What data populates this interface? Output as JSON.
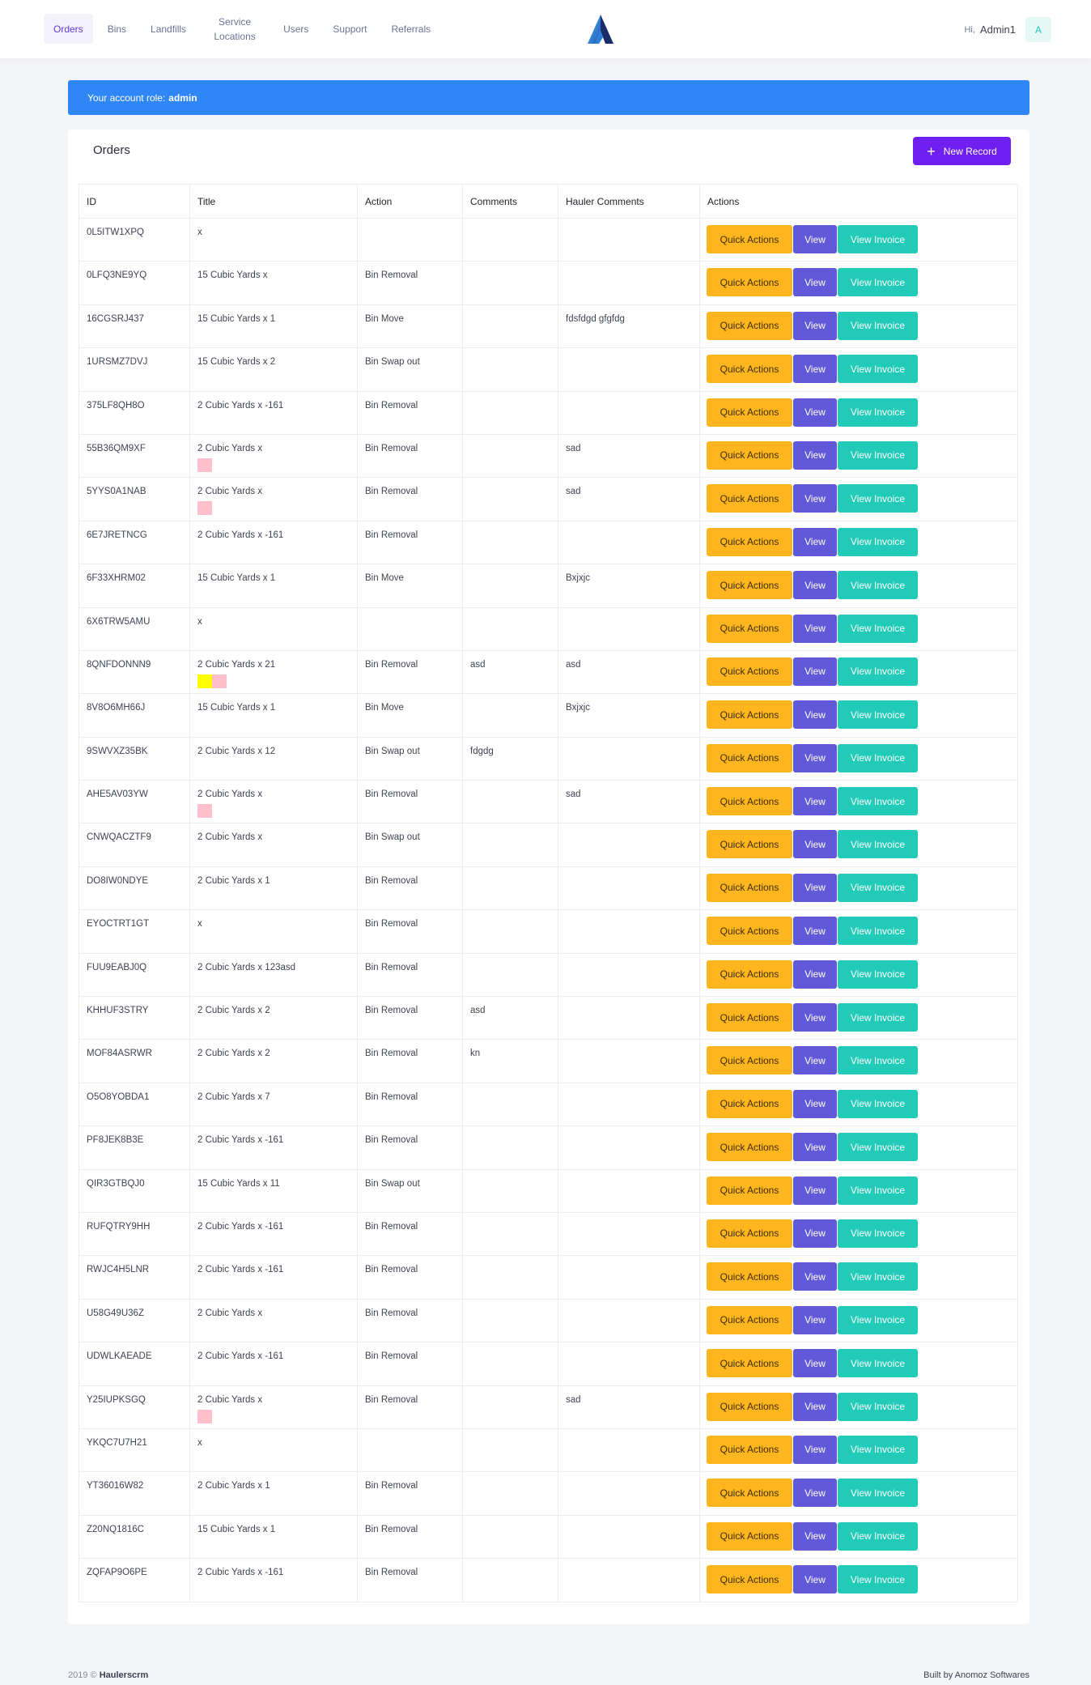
{
  "nav": {
    "items": [
      {
        "label": "Orders",
        "active": true
      },
      {
        "label": "Bins"
      },
      {
        "label": "Landfills"
      },
      {
        "label": "Service Locations"
      },
      {
        "label": "Users"
      },
      {
        "label": "Support"
      },
      {
        "label": "Referrals"
      }
    ]
  },
  "user": {
    "greeting": "Hi,",
    "name": "Admin1",
    "initial": "A"
  },
  "alert": {
    "prefix": "Your account role:",
    "role": "admin"
  },
  "card": {
    "title": "Orders",
    "new_button": "New Record"
  },
  "table": {
    "headers": [
      "ID",
      "Title",
      "Action",
      "Comments",
      "Hauler Comments",
      "Actions"
    ],
    "buttons": {
      "quick": "Quick Actions",
      "view": "View",
      "invoice": "View Invoice"
    },
    "rows": [
      {
        "id": "0L5ITW1XPQ",
        "title": "x",
        "action": "",
        "comments": "",
        "hauler": ""
      },
      {
        "id": "0LFQ3NE9YQ",
        "title": "15 Cubic Yards x",
        "action": "Bin Removal",
        "comments": "",
        "hauler": ""
      },
      {
        "id": "16CGSRJ437",
        "title": "15 Cubic Yards x 1",
        "action": "Bin Move",
        "comments": "",
        "hauler": "fdsfdgd gfgfdg"
      },
      {
        "id": "1URSMZ7DVJ",
        "title": "15 Cubic Yards x 2",
        "action": "Bin Swap out",
        "comments": "",
        "hauler": ""
      },
      {
        "id": "375LF8QH8O",
        "title": "2 Cubic Yards x -161",
        "action": "Bin Removal",
        "comments": "",
        "hauler": ""
      },
      {
        "id": "55B36QM9XF",
        "title": "2 Cubic Yards x",
        "action": "Bin Removal",
        "comments": "",
        "hauler": "sad",
        "swatches": [
          "#ffc0cb"
        ]
      },
      {
        "id": "5YYS0A1NAB",
        "title": "2 Cubic Yards x",
        "action": "Bin Removal",
        "comments": "",
        "hauler": "sad",
        "swatches": [
          "#ffc0cb"
        ]
      },
      {
        "id": "6E7JRETNCG",
        "title": "2 Cubic Yards x -161",
        "action": "Bin Removal",
        "comments": "",
        "hauler": ""
      },
      {
        "id": "6F33XHRM02",
        "title": "15 Cubic Yards x 1",
        "action": "Bin Move",
        "comments": "",
        "hauler": "Bxjxjc"
      },
      {
        "id": "6X6TRW5AMU",
        "title": "x",
        "action": "",
        "comments": "",
        "hauler": ""
      },
      {
        "id": "8QNFDONNN9",
        "title": "2 Cubic Yards x 21",
        "action": "Bin Removal",
        "comments": "asd",
        "hauler": "asd",
        "swatches": [
          "#ffff00",
          "#ffc0cb"
        ]
      },
      {
        "id": "8V8O6MH66J",
        "title": "15 Cubic Yards x 1",
        "action": "Bin Move",
        "comments": "",
        "hauler": "Bxjxjc"
      },
      {
        "id": "9SWVXZ35BK",
        "title": "2 Cubic Yards x 12",
        "action": "Bin Swap out",
        "comments": "fdgdg",
        "hauler": ""
      },
      {
        "id": "AHE5AV03YW",
        "title": "2 Cubic Yards x",
        "action": "Bin Removal",
        "comments": "",
        "hauler": "sad",
        "swatches": [
          "#ffc0cb"
        ]
      },
      {
        "id": "CNWQACZTF9",
        "title": "2 Cubic Yards x",
        "action": "Bin Swap out",
        "comments": "",
        "hauler": ""
      },
      {
        "id": "DO8IW0NDYE",
        "title": "2 Cubic Yards x 1",
        "action": "Bin Removal",
        "comments": "",
        "hauler": ""
      },
      {
        "id": "EYOCTRT1GT",
        "title": "x",
        "action": "Bin Removal",
        "comments": "",
        "hauler": ""
      },
      {
        "id": "FUU9EABJ0Q",
        "title": "2 Cubic Yards x 123asd",
        "action": "Bin Removal",
        "comments": "",
        "hauler": ""
      },
      {
        "id": "KHHUF3STRY",
        "title": "2 Cubic Yards x 2",
        "action": "Bin Removal",
        "comments": "asd",
        "hauler": ""
      },
      {
        "id": "MOF84ASRWR",
        "title": "2 Cubic Yards x 2",
        "action": "Bin Removal",
        "comments": "kn",
        "hauler": ""
      },
      {
        "id": "O5O8YOBDA1",
        "title": "2 Cubic Yards x 7",
        "action": "Bin Removal",
        "comments": "",
        "hauler": ""
      },
      {
        "id": "PF8JEK8B3E",
        "title": "2 Cubic Yards x -161",
        "action": "Bin Removal",
        "comments": "",
        "hauler": ""
      },
      {
        "id": "QIR3GTBQJ0",
        "title": "15 Cubic Yards x 11",
        "action": "Bin Swap out",
        "comments": "",
        "hauler": ""
      },
      {
        "id": "RUFQTRY9HH",
        "title": "2 Cubic Yards x -161",
        "action": "Bin Removal",
        "comments": "",
        "hauler": ""
      },
      {
        "id": "RWJC4H5LNR",
        "title": "2 Cubic Yards x -161",
        "action": "Bin Removal",
        "comments": "",
        "hauler": ""
      },
      {
        "id": "U58G49U36Z",
        "title": "2 Cubic Yards x",
        "action": "Bin Removal",
        "comments": "",
        "hauler": ""
      },
      {
        "id": "UDWLKAEADE",
        "title": "2 Cubic Yards x -161",
        "action": "Bin Removal",
        "comments": "",
        "hauler": ""
      },
      {
        "id": "Y25IUPKSGQ",
        "title": "2 Cubic Yards x",
        "action": "Bin Removal",
        "comments": "",
        "hauler": "sad",
        "swatches": [
          "#ffc0cb"
        ]
      },
      {
        "id": "YKQC7U7H21",
        "title": "x",
        "action": "",
        "comments": "",
        "hauler": ""
      },
      {
        "id": "YT36016W82",
        "title": "2 Cubic Yards x 1",
        "action": "Bin Removal",
        "comments": "",
        "hauler": ""
      },
      {
        "id": "Z20NQ1816C",
        "title": "15 Cubic Yards x 1",
        "action": "Bin Removal",
        "comments": "",
        "hauler": ""
      },
      {
        "id": "ZQFAP9O6PE",
        "title": "2 Cubic Yards x -161",
        "action": "Bin Removal",
        "comments": "",
        "hauler": ""
      }
    ]
  },
  "footer": {
    "year": "2019 ©",
    "brand": "Haulerscrm",
    "credit": "Built by Anomoz Softwares"
  },
  "colors": {
    "primary": "#6f1ff0",
    "alert": "#2f86f6",
    "quick": "#ffb61e",
    "view": "#6259d8",
    "invoice": "#21cbb8"
  }
}
